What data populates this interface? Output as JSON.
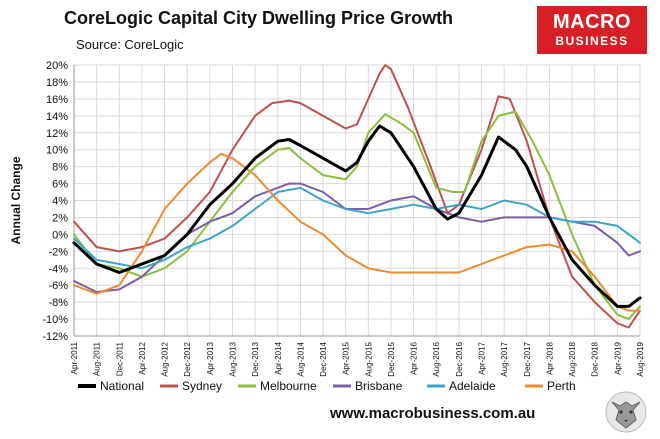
{
  "title": "CoreLogic Capital City Dwelling Price Growth",
  "subtitle": "Source: CoreLogic",
  "logo": {
    "line1": "MACRO",
    "line2": "BUSINESS"
  },
  "footer": "www.macrobusiness.com.au",
  "colors": {
    "brand_red": "#d71f26"
  },
  "chart_data": {
    "type": "line",
    "ylabel": "Annual Change",
    "ylim": [
      -12,
      20
    ],
    "yticks": [
      20,
      18,
      16,
      14,
      12,
      10,
      8,
      6,
      4,
      2,
      0,
      -2,
      -4,
      -6,
      -8,
      -10,
      -12
    ],
    "ytick_labels": [
      "20%",
      "18%",
      "16%",
      "14%",
      "12%",
      "10%",
      "8%",
      "6%",
      "4%",
      "2%",
      "0%",
      "-2%",
      "-4%",
      "-6%",
      "-8%",
      "-10%",
      "-12%"
    ],
    "x_start": "Apr-2011",
    "x_end": "Aug-2019",
    "x_tick_labels": [
      "Apr-2011",
      "Aug-2011",
      "Dec-2011",
      "Apr-2012",
      "Aug-2012",
      "Dec-2012",
      "Apr-2013",
      "Aug-2013",
      "Dec-2013",
      "Apr-2014",
      "Aug-2014",
      "Dec-2014",
      "Apr-2015",
      "Aug-2015",
      "Dec-2015",
      "Apr-2016",
      "Aug-2016",
      "Dec-2016",
      "Apr-2017",
      "Aug-2017",
      "Dec-2017",
      "Apr-2018",
      "Aug-2018",
      "Dec-2018",
      "Apr-2019",
      "Aug-2019"
    ],
    "grid": true,
    "legend_position": "bottom",
    "series": [
      {
        "name": "National",
        "color": "#000000",
        "width": 3,
        "points": [
          [
            "Apr-2011",
            -1
          ],
          [
            "Aug-2011",
            -3.5
          ],
          [
            "Dec-2011",
            -4.5
          ],
          [
            "Apr-2012",
            -3.5
          ],
          [
            "Aug-2012",
            -2.5
          ],
          [
            "Dec-2012",
            0
          ],
          [
            "Apr-2013",
            3.5
          ],
          [
            "Aug-2013",
            6
          ],
          [
            "Dec-2013",
            9
          ],
          [
            "Apr-2014",
            11
          ],
          [
            "Jun-2014",
            11.2
          ],
          [
            "Aug-2014",
            10.5
          ],
          [
            "Dec-2014",
            9
          ],
          [
            "Apr-2015",
            7.5
          ],
          [
            "Jun-2015",
            8.5
          ],
          [
            "Aug-2015",
            11
          ],
          [
            "Oct-2015",
            12.8
          ],
          [
            "Dec-2015",
            12
          ],
          [
            "Apr-2016",
            8
          ],
          [
            "Aug-2016",
            3
          ],
          [
            "Oct-2016",
            1.8
          ],
          [
            "Dec-2016",
            2.5
          ],
          [
            "Apr-2017",
            7
          ],
          [
            "Jul-2017",
            11.5
          ],
          [
            "Oct-2017",
            10
          ],
          [
            "Dec-2017",
            8
          ],
          [
            "Apr-2018",
            2
          ],
          [
            "Aug-2018",
            -3
          ],
          [
            "Dec-2018",
            -6
          ],
          [
            "Apr-2019",
            -8.5
          ],
          [
            "Jun-2019",
            -8.5
          ],
          [
            "Aug-2019",
            -7.5
          ]
        ]
      },
      {
        "name": "Sydney",
        "color": "#c0504d",
        "width": 2,
        "points": [
          [
            "Apr-2011",
            1.5
          ],
          [
            "Aug-2011",
            -1.5
          ],
          [
            "Dec-2011",
            -2
          ],
          [
            "Apr-2012",
            -1.5
          ],
          [
            "Aug-2012",
            -0.5
          ],
          [
            "Dec-2012",
            2
          ],
          [
            "Apr-2013",
            5
          ],
          [
            "Aug-2013",
            10
          ],
          [
            "Dec-2013",
            14
          ],
          [
            "Mar-2014",
            15.5
          ],
          [
            "Jun-2014",
            15.8
          ],
          [
            "Aug-2014",
            15.5
          ],
          [
            "Dec-2014",
            14
          ],
          [
            "Apr-2015",
            12.5
          ],
          [
            "Jun-2015",
            13
          ],
          [
            "Aug-2015",
            16
          ],
          [
            "Oct-2015",
            19
          ],
          [
            "Nov-2015",
            20
          ],
          [
            "Dec-2015",
            19.5
          ],
          [
            "Mar-2016",
            15
          ],
          [
            "Jul-2016",
            8
          ],
          [
            "Oct-2016",
            2.5
          ],
          [
            "Dec-2016",
            3.5
          ],
          [
            "Apr-2017",
            10
          ],
          [
            "Jul-2017",
            16.3
          ],
          [
            "Sep-2017",
            16
          ],
          [
            "Dec-2017",
            11
          ],
          [
            "Apr-2018",
            2
          ],
          [
            "Aug-2018",
            -5
          ],
          [
            "Dec-2018",
            -8
          ],
          [
            "Apr-2019",
            -10.5
          ],
          [
            "Jun-2019",
            -11
          ],
          [
            "Aug-2019",
            -9
          ]
        ]
      },
      {
        "name": "Melbourne",
        "color": "#8cbf3f",
        "width": 2,
        "points": [
          [
            "Apr-2011",
            0
          ],
          [
            "Aug-2011",
            -3.5
          ],
          [
            "Dec-2011",
            -4
          ],
          [
            "Apr-2012",
            -5
          ],
          [
            "Aug-2012",
            -4
          ],
          [
            "Dec-2012",
            -2
          ],
          [
            "Apr-2013",
            1.5
          ],
          [
            "Aug-2013",
            5
          ],
          [
            "Dec-2013",
            8
          ],
          [
            "Apr-2014",
            10
          ],
          [
            "Jun-2014",
            10.2
          ],
          [
            "Aug-2014",
            9
          ],
          [
            "Dec-2014",
            7
          ],
          [
            "Apr-2015",
            6.5
          ],
          [
            "Jun-2015",
            8
          ],
          [
            "Aug-2015",
            12
          ],
          [
            "Nov-2015",
            14.2
          ],
          [
            "Feb-2016",
            13
          ],
          [
            "Apr-2016",
            12
          ],
          [
            "Aug-2016",
            5.5
          ],
          [
            "Nov-2016",
            5
          ],
          [
            "Jan-2017",
            5
          ],
          [
            "Apr-2017",
            11
          ],
          [
            "Jul-2017",
            14
          ],
          [
            "Oct-2017",
            14.5
          ],
          [
            "Jan-2018",
            11
          ],
          [
            "Apr-2018",
            7
          ],
          [
            "Aug-2018",
            0
          ],
          [
            "Dec-2018",
            -6
          ],
          [
            "Apr-2019",
            -9.5
          ],
          [
            "Jun-2019",
            -10
          ],
          [
            "Aug-2019",
            -8.5
          ]
        ]
      },
      {
        "name": "Brisbane",
        "color": "#7b5da8",
        "width": 2,
        "points": [
          [
            "Apr-2011",
            -5.5
          ],
          [
            "Aug-2011",
            -6.8
          ],
          [
            "Dec-2011",
            -6.5
          ],
          [
            "Apr-2012",
            -5
          ],
          [
            "Aug-2012",
            -2.5
          ],
          [
            "Dec-2012",
            0
          ],
          [
            "Apr-2013",
            1.5
          ],
          [
            "Aug-2013",
            2.5
          ],
          [
            "Dec-2013",
            4.5
          ],
          [
            "Apr-2014",
            5.5
          ],
          [
            "Jun-2014",
            6
          ],
          [
            "Aug-2014",
            6
          ],
          [
            "Dec-2014",
            5
          ],
          [
            "Apr-2015",
            3
          ],
          [
            "Aug-2015",
            3
          ],
          [
            "Dec-2015",
            4
          ],
          [
            "Apr-2016",
            4.5
          ],
          [
            "Aug-2016",
            3
          ],
          [
            "Dec-2016",
            2
          ],
          [
            "Apr-2017",
            1.5
          ],
          [
            "Aug-2017",
            2
          ],
          [
            "Dec-2017",
            2
          ],
          [
            "Apr-2018",
            2
          ],
          [
            "Aug-2018",
            1.5
          ],
          [
            "Dec-2018",
            1
          ],
          [
            "Apr-2019",
            -1
          ],
          [
            "Jun-2019",
            -2.5
          ],
          [
            "Aug-2019",
            -2
          ]
        ]
      },
      {
        "name": "Adelaide",
        "color": "#3ba4c7",
        "width": 2,
        "points": [
          [
            "Apr-2011",
            -0.5
          ],
          [
            "Aug-2011",
            -3
          ],
          [
            "Dec-2011",
            -3.5
          ],
          [
            "Apr-2012",
            -4
          ],
          [
            "Aug-2012",
            -3
          ],
          [
            "Dec-2012",
            -1.5
          ],
          [
            "Apr-2013",
            -0.5
          ],
          [
            "Aug-2013",
            1
          ],
          [
            "Dec-2013",
            3
          ],
          [
            "Apr-2014",
            5
          ],
          [
            "Aug-2014",
            5.5
          ],
          [
            "Dec-2014",
            4
          ],
          [
            "Apr-2015",
            3
          ],
          [
            "Aug-2015",
            2.5
          ],
          [
            "Dec-2015",
            3
          ],
          [
            "Apr-2016",
            3.5
          ],
          [
            "Aug-2016",
            3
          ],
          [
            "Dec-2016",
            3.5
          ],
          [
            "Apr-2017",
            3
          ],
          [
            "Aug-2017",
            4
          ],
          [
            "Dec-2017",
            3.5
          ],
          [
            "Apr-2018",
            2
          ],
          [
            "Aug-2018",
            1.5
          ],
          [
            "Dec-2018",
            1.5
          ],
          [
            "Apr-2019",
            1
          ],
          [
            "Aug-2019",
            -1
          ]
        ]
      },
      {
        "name": "Perth",
        "color": "#f08a2e",
        "width": 2,
        "points": [
          [
            "Apr-2011",
            -6
          ],
          [
            "Aug-2011",
            -7
          ],
          [
            "Dec-2011",
            -6
          ],
          [
            "Apr-2012",
            -2
          ],
          [
            "Aug-2012",
            3
          ],
          [
            "Dec-2012",
            6
          ],
          [
            "Apr-2013",
            8.5
          ],
          [
            "Jun-2013",
            9.5
          ],
          [
            "Aug-2013",
            9
          ],
          [
            "Dec-2013",
            7
          ],
          [
            "Apr-2014",
            4
          ],
          [
            "Aug-2014",
            1.5
          ],
          [
            "Dec-2014",
            0
          ],
          [
            "Apr-2015",
            -2.5
          ],
          [
            "Aug-2015",
            -4
          ],
          [
            "Dec-2015",
            -4.5
          ],
          [
            "Apr-2016",
            -4.5
          ],
          [
            "Aug-2016",
            -4.5
          ],
          [
            "Dec-2016",
            -4.5
          ],
          [
            "Apr-2017",
            -3.5
          ],
          [
            "Aug-2017",
            -2.5
          ],
          [
            "Dec-2017",
            -1.5
          ],
          [
            "Apr-2018",
            -1.2
          ],
          [
            "Aug-2018",
            -2
          ],
          [
            "Dec-2018",
            -5
          ],
          [
            "Apr-2019",
            -8.5
          ],
          [
            "Jun-2019",
            -9
          ],
          [
            "Aug-2019",
            -9
          ]
        ]
      }
    ]
  }
}
